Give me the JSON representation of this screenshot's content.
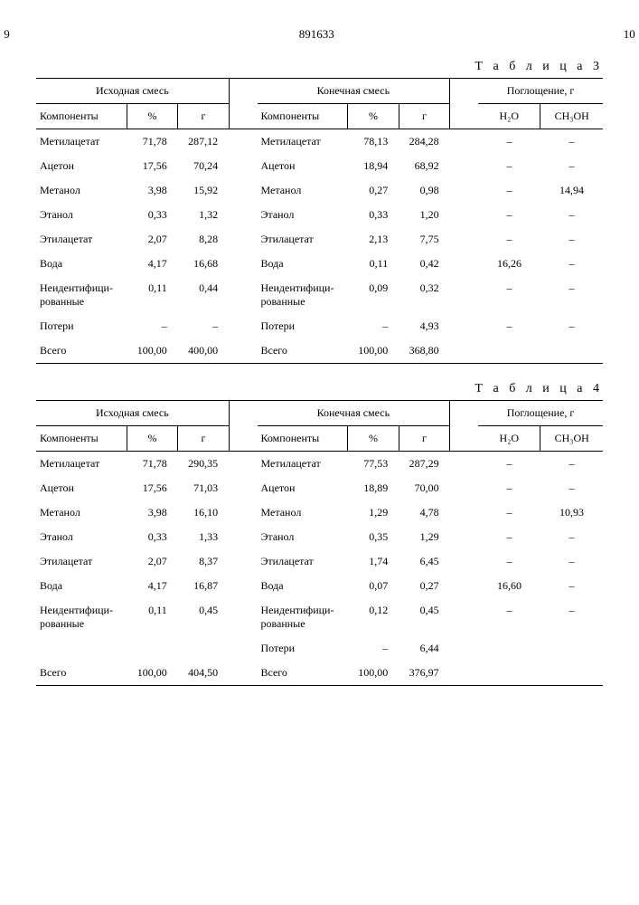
{
  "header": {
    "left_page": "9",
    "doc_no": "891633",
    "right_page": "10"
  },
  "table3": {
    "caption": "Т а б л и ц а   3",
    "groups": {
      "g1": "Исходная смесь",
      "g2": "Конечная смесь",
      "g3": "Поглощение, г"
    },
    "cols": {
      "c1": "Компоненты",
      "c2": "%",
      "c3": "г",
      "c4": "Компоненты",
      "c5": "%",
      "c6": "г",
      "c7": "H₂O",
      "c8": "CH₃OH"
    },
    "rows": [
      {
        "a": "Метилацетат",
        "b": "71,78",
        "c": "287,12",
        "d": "Метилацетат",
        "e": "78,13",
        "f": "284,28",
        "g": "–",
        "h": "–"
      },
      {
        "a": "Ацетон",
        "b": "17,56",
        "c": "70,24",
        "d": "Ацетон",
        "e": "18,94",
        "f": "68,92",
        "g": "–",
        "h": "–"
      },
      {
        "a": "Метанол",
        "b": "3,98",
        "c": "15,92",
        "d": "Метанол",
        "e": "0,27",
        "f": "0,98",
        "g": "–",
        "h": "14,94"
      },
      {
        "a": "Этанол",
        "b": "0,33",
        "c": "1,32",
        "d": "Этанол",
        "e": "0,33",
        "f": "1,20",
        "g": "–",
        "h": "–"
      },
      {
        "a": "Этилацетат",
        "b": "2,07",
        "c": "8,28",
        "d": "Этилацетат",
        "e": "2,13",
        "f": "7,75",
        "g": "–",
        "h": "–"
      },
      {
        "a": "Вода",
        "b": "4,17",
        "c": "16,68",
        "d": "Вода",
        "e": "0,11",
        "f": "0,42",
        "g": "16,26",
        "h": "–"
      },
      {
        "a": "Неидентифици-рованные",
        "b": "0,11",
        "c": "0,44",
        "d": "Неидентифици-рованные",
        "e": "0,09",
        "f": "0,32",
        "g": "–",
        "h": "–"
      },
      {
        "a": "Потери",
        "b": "–",
        "c": "–",
        "d": "Потери",
        "e": "–",
        "f": "4,93",
        "g": "–",
        "h": "–"
      },
      {
        "a": "Всего",
        "b": "100,00",
        "c": "400,00",
        "d": "Всего",
        "e": "100,00",
        "f": "368,80",
        "g": "",
        "h": ""
      }
    ]
  },
  "table4": {
    "caption": "Т а б л и ц а   4",
    "groups": {
      "g1": "Исходная смесь",
      "g2": "Конечная смесь",
      "g3": "Поглощение, г"
    },
    "cols": {
      "c1": "Компоненты",
      "c2": "%",
      "c3": "г",
      "c4": "Компоненты",
      "c5": "%",
      "c6": "г",
      "c7": "H₂O",
      "c8": "CH₃OH"
    },
    "rows": [
      {
        "a": "Метилацетат",
        "b": "71,78",
        "c": "290,35",
        "d": "Метилацетат",
        "e": "77,53",
        "f": "287,29",
        "g": "–",
        "h": "–"
      },
      {
        "a": "Ацетон",
        "b": "17,56",
        "c": "71,03",
        "d": "Ацетон",
        "e": "18,89",
        "f": "70,00",
        "g": "–",
        "h": "–"
      },
      {
        "a": "Метанол",
        "b": "3,98",
        "c": "16,10",
        "d": "Метанол",
        "e": "1,29",
        "f": "4,78",
        "g": "–",
        "h": "10,93"
      },
      {
        "a": "Этанол",
        "b": "0,33",
        "c": "1,33",
        "d": "Этанол",
        "e": "0,35",
        "f": "1,29",
        "g": "–",
        "h": "–"
      },
      {
        "a": "Этилацетат",
        "b": "2,07",
        "c": "8,37",
        "d": "Этилацетат",
        "e": "1,74",
        "f": "6,45",
        "g": "–",
        "h": "–"
      },
      {
        "a": "Вода",
        "b": "4,17",
        "c": "16,87",
        "d": "Вода",
        "e": "0,07",
        "f": "0,27",
        "g": "16,60",
        "h": "–"
      },
      {
        "a": "Неидентифици-рованные",
        "b": "0,11",
        "c": "0,45",
        "d": "Неидентифици-рованные",
        "e": "0,12",
        "f": "0,45",
        "g": "–",
        "h": "–"
      },
      {
        "a": "",
        "b": "",
        "c": "",
        "d": "Потери",
        "e": "–",
        "f": "6,44",
        "g": "",
        "h": ""
      },
      {
        "a": "Всего",
        "b": "100,00",
        "c": "404,50",
        "d": "Всего",
        "e": "100,00",
        "f": "376,97",
        "g": "",
        "h": ""
      }
    ]
  }
}
